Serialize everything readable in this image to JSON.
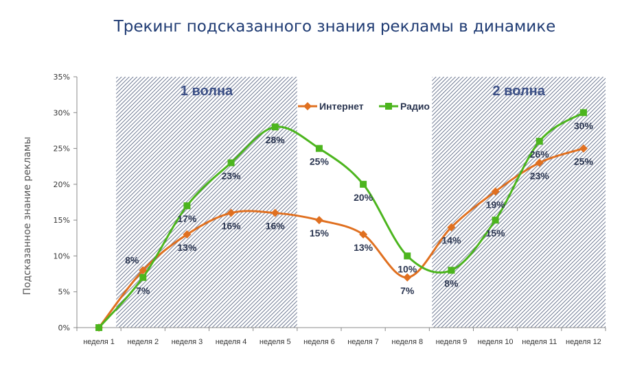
{
  "chart_data": {
    "type": "line",
    "title": "Трекинг подсказанного знания рекламы в динамике",
    "xlabel": "",
    "ylabel": "Подсказанное знание рекламы",
    "ylim": [
      0,
      35
    ],
    "yticks": [
      "0%",
      "5%",
      "10%",
      "15%",
      "20%",
      "25%",
      "30%",
      "35%"
    ],
    "categories": [
      "неделя 1",
      "неделя 2",
      "неделя 3",
      "неделя 4",
      "неделя 5",
      "неделя 6",
      "неделя 7",
      "неделя 8",
      "неделя 9",
      "неделя 10",
      "неделя 11",
      "неделя 12"
    ],
    "series": [
      {
        "name": "Интернет",
        "color": "#e07020",
        "marker": "diamond",
        "values": [
          0,
          8,
          13,
          16,
          16,
          15,
          13,
          7,
          14,
          19,
          23,
          25
        ],
        "labels": [
          "",
          "8%",
          "13%",
          "16%",
          "16%",
          "15%",
          "13%",
          "7%",
          "14%",
          "19%",
          "23%",
          "25%"
        ]
      },
      {
        "name": "Радио",
        "color": "#4cb51e",
        "marker": "square",
        "values": [
          0,
          7,
          17,
          23,
          28,
          25,
          20,
          10,
          8,
          15,
          26,
          30
        ],
        "labels": [
          "",
          "7%",
          "17%",
          "23%",
          "28%",
          "25%",
          "20%",
          "10%",
          "8%",
          "15%",
          "26%",
          "30%"
        ]
      }
    ],
    "annotations": [
      {
        "text": "1 волна",
        "from_category": 2,
        "to_category": 5
      },
      {
        "text": "2 волна",
        "from_category": 9,
        "to_category": 12
      }
    ],
    "legend": "top-center",
    "grid": false
  }
}
